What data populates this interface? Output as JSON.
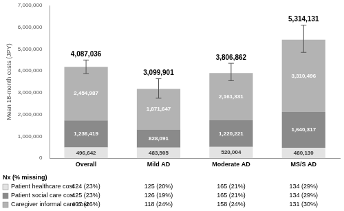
{
  "chart_data": {
    "type": "bar",
    "stacked": true,
    "data_labels": true,
    "grid": false,
    "y_label": "Mean 18-month costs (JPY)",
    "categories": [
      "Overall",
      "Mild AD",
      "Moderate AD",
      "MS/S AD"
    ],
    "series": [
      {
        "name": "Patient healthcare cost",
        "color": "#e3e3e3",
        "values": [
          496642,
          483505,
          520004,
          480130
        ],
        "value_labels": [
          "496,642",
          "483,505",
          "520,004",
          "480,130"
        ],
        "n_labels": [
          "424 (23%)",
          "125 (20%)",
          "165 (21%)",
          "134 (29%)"
        ]
      },
      {
        "name": "Patient social care cost",
        "color": "#8a8a8a",
        "values": [
          1236419,
          828091,
          1220221,
          1640317
        ],
        "value_labels": [
          "1,236,419",
          "828,091",
          "1,220,221",
          "1,640,317"
        ],
        "n_labels": [
          "425 (23%)",
          "126 (19%)",
          "165 (21%)",
          "134 (29%)"
        ]
      },
      {
        "name": "Caregiver informal care cost",
        "color": "#b3b3b3",
        "values": [
          2454987,
          1871647,
          2161331,
          3310496
        ],
        "value_labels": [
          "2,454,987",
          "1,871,647",
          "2,161,331",
          "3,310,496"
        ],
        "n_labels": [
          "407 (26%)",
          "118 (24%)",
          "158 (24%)",
          "131 (30%)"
        ]
      }
    ],
    "totals": {
      "values": [
        4087036,
        3099901,
        3806862,
        5314131
      ],
      "value_labels": [
        "4,087,036",
        "3,099,901",
        "3,806,862",
        "5,314,131"
      ],
      "error_low": [
        3880000,
        2750000,
        3550000,
        4850000
      ],
      "error_high": [
        4500000,
        3650000,
        4350000,
        6100000
      ]
    },
    "table_title": "Nx (% missing)",
    "ylim": [
      0,
      7000000
    ],
    "yticks": [
      0,
      {
        "value": 1000000,
        "label": "1,000,000"
      },
      {
        "value": 2000000,
        "label": "2,000,000"
      },
      {
        "value": 3000000,
        "label": "3,000,000"
      },
      {
        "value": 4000000,
        "label": "4,000,000"
      },
      {
        "value": 5000000,
        "label": "5,000,000"
      },
      {
        "value": 6000000,
        "label": "6,000,000"
      },
      {
        "value": 7000000,
        "label": "7,000,000"
      }
    ]
  }
}
